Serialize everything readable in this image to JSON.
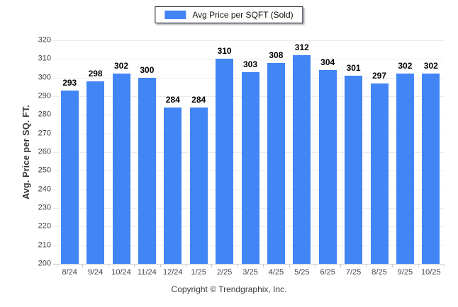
{
  "legend": {
    "label": "Avg Price per SQFT (Sold)"
  },
  "footer": {
    "text": "Copyright © Trendgraphix, Inc."
  },
  "colors": {
    "bar": "#4285f4",
    "grid": "#ececec",
    "axis": "#cfcfcf",
    "tick": "#c8c8c8",
    "legend_border": "#1c1f26",
    "background": "#ffffff"
  },
  "chart_data": {
    "type": "bar",
    "title": "Avg Price per SQFT (Sold)",
    "categories": [
      "8/24",
      "9/24",
      "10/24",
      "11/24",
      "12/24",
      "1/25",
      "2/25",
      "3/25",
      "4/25",
      "5/25",
      "6/25",
      "7/25",
      "8/25",
      "9/25",
      "10/25"
    ],
    "values": [
      293,
      298,
      302,
      300,
      284,
      284,
      310,
      303,
      308,
      312,
      304,
      301,
      297,
      302,
      302
    ],
    "series_name": "Avg Price per SQFT (Sold)",
    "xlabel": "",
    "ylabel": "Avg. Price per SQ. FT.",
    "ylim": [
      200,
      320
    ],
    "yticks": [
      200,
      210,
      220,
      230,
      240,
      250,
      260,
      270,
      280,
      290,
      300,
      310,
      320
    ],
    "grid": "horizontal",
    "legend_position": "top-center",
    "value_labels": true,
    "bar_color": "#4285f4"
  }
}
